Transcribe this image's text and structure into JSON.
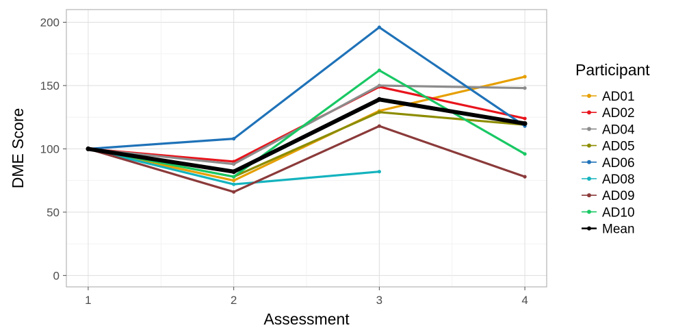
{
  "chart_data": {
    "type": "line",
    "xlabel": "Assessment",
    "ylabel": "DME Score",
    "x": [
      1,
      2,
      3,
      4
    ],
    "x_tick_labels": [
      "1",
      "2",
      "3",
      "4"
    ],
    "y_tick_labels": [
      "0",
      "50",
      "100",
      "150",
      "200"
    ],
    "y_ticks": [
      0,
      50,
      100,
      150,
      200
    ],
    "xlim": [
      0.85,
      4.15
    ],
    "ylim": [
      -9,
      210
    ],
    "grid": true,
    "legend": {
      "title": "Participant",
      "placement": "right"
    },
    "series": [
      {
        "name": "AD01",
        "color": "#E69F00",
        "values": [
          100,
          75,
          130,
          157
        ]
      },
      {
        "name": "AD02",
        "color": "#E8141C",
        "values": [
          100,
          90,
          149,
          124
        ]
      },
      {
        "name": "AD04",
        "color": "#8C8C8C",
        "values": [
          100,
          88,
          150,
          148
        ]
      },
      {
        "name": "AD05",
        "color": "#8C8C00",
        "values": [
          100,
          78,
          129,
          119
        ]
      },
      {
        "name": "AD06",
        "color": "#1F72B8",
        "values": [
          100,
          108,
          196,
          118
        ]
      },
      {
        "name": "AD08",
        "color": "#14B3BE",
        "values": [
          100,
          72,
          82,
          null
        ]
      },
      {
        "name": "AD09",
        "color": "#8B3A3A",
        "values": [
          100,
          66,
          118,
          78
        ]
      },
      {
        "name": "AD10",
        "color": "#19C864",
        "values": [
          100,
          78,
          162,
          96
        ]
      },
      {
        "name": "Mean",
        "color": "#000000",
        "values": [
          100,
          82,
          139,
          120
        ]
      }
    ]
  }
}
